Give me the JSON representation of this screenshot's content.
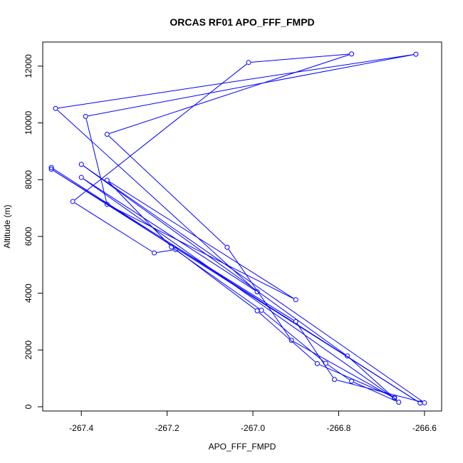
{
  "chart_data": {
    "type": "line",
    "title": "ORCAS RF01 APO_FFF_FMPD",
    "xlabel": "APO_FFF_FMPD",
    "ylabel": "Altitude (m)",
    "xlim": [
      -267.49,
      -266.56
    ],
    "ylim": [
      -150,
      12850
    ],
    "x_ticks": [
      -267.4,
      -267.2,
      -267.0,
      -266.8,
      -266.6
    ],
    "x_tick_labels": [
      "-267.4",
      "-267.2",
      "-267.0",
      "-266.8",
      "-266.6"
    ],
    "y_ticks": [
      0,
      2000,
      4000,
      6000,
      8000,
      10000,
      12000
    ],
    "y_tick_labels": [
      "0",
      "2000",
      "4000",
      "6000",
      "8000",
      "10000",
      "12000"
    ],
    "series": [
      {
        "color": "#0000ff",
        "marker": "open-circle",
        "points": [
          {
            "x": -267.47,
            "y": 8430
          },
          {
            "x": -266.61,
            "y": 130
          },
          {
            "x": -267.47,
            "y": 8370
          },
          {
            "x": -266.9,
            "y": 3000
          },
          {
            "x": -266.81,
            "y": 960
          },
          {
            "x": -266.6,
            "y": 140
          },
          {
            "x": -267.4,
            "y": 8540
          },
          {
            "x": -266.78,
            "y": 1790
          },
          {
            "x": -266.66,
            "y": 160
          },
          {
            "x": -266.77,
            "y": 900
          },
          {
            "x": -266.83,
            "y": 1530
          },
          {
            "x": -266.98,
            "y": 3400
          },
          {
            "x": -267.19,
            "y": 5630
          },
          {
            "x": -267.34,
            "y": 7980
          },
          {
            "x": -266.9,
            "y": 3770
          },
          {
            "x": -267.34,
            "y": 7130
          },
          {
            "x": -267.39,
            "y": 10230
          },
          {
            "x": -266.62,
            "y": 12420
          },
          {
            "x": -267.46,
            "y": 10510
          },
          {
            "x": -266.99,
            "y": 4050
          },
          {
            "x": -267.4,
            "y": 8080
          },
          {
            "x": -266.67,
            "y": 300
          },
          {
            "x": -266.91,
            "y": 2340
          },
          {
            "x": -267.06,
            "y": 5620
          },
          {
            "x": -267.34,
            "y": 9600
          },
          {
            "x": -266.77,
            "y": 12430
          },
          {
            "x": -267.01,
            "y": 12130
          },
          {
            "x": -267.42,
            "y": 7230
          },
          {
            "x": -267.23,
            "y": 5420
          },
          {
            "x": -267.18,
            "y": 5540
          },
          {
            "x": -266.99,
            "y": 3380
          },
          {
            "x": -266.85,
            "y": 1520
          },
          {
            "x": -266.67,
            "y": 330
          }
        ]
      }
    ]
  }
}
